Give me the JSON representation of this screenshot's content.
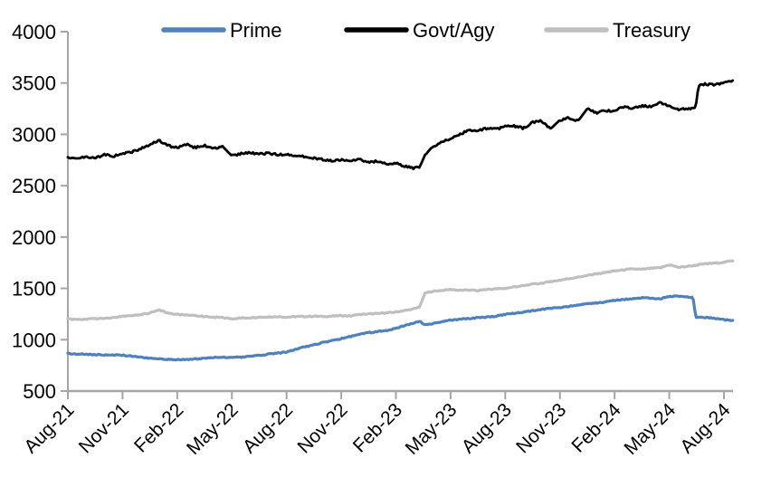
{
  "chart_data": {
    "type": "line",
    "title": "",
    "xlabel": "",
    "ylabel": "",
    "grid": false,
    "legend_position": "top",
    "axis_color": "#a6a6a6",
    "text_color": "#000000",
    "background": "#ffffff",
    "ylim": [
      500,
      4000
    ],
    "y_ticks": [
      4000,
      3500,
      3000,
      2500,
      2000,
      1500,
      1000,
      500
    ],
    "x_tick_labels": [
      "Aug-21",
      "Nov-21",
      "Feb-22",
      "May-22",
      "Aug-22",
      "Nov-22",
      "Feb-23",
      "May-23",
      "Aug-23",
      "Nov-23",
      "Feb-24",
      "May-24",
      "Aug-24"
    ],
    "x_tick_positions_months": [
      0,
      3,
      6,
      9,
      12,
      15,
      18,
      21,
      24,
      27,
      30,
      33,
      36
    ],
    "x_unit": "months since Aug-2021",
    "xlim": [
      0,
      36.5
    ],
    "x": [
      0,
      0.5,
      1,
      1.5,
      2,
      2.5,
      3,
      3.5,
      4,
      4.5,
      5,
      5.5,
      6,
      6.5,
      7,
      7.5,
      8,
      8.5,
      9,
      9.5,
      10,
      10.5,
      11,
      11.5,
      12,
      12.5,
      13,
      13.5,
      14,
      14.5,
      15,
      15.5,
      16,
      16.5,
      17,
      17.5,
      18,
      18.5,
      19,
      19.3,
      19.6,
      20,
      20.5,
      21,
      21.5,
      22,
      22.5,
      23,
      23.5,
      24,
      24.5,
      25,
      25.5,
      26,
      26.5,
      27,
      27.5,
      28,
      28.5,
      29,
      29.5,
      30,
      30.5,
      31,
      31.5,
      32,
      32.5,
      33,
      33.5,
      34,
      34.3,
      34.45,
      34.6,
      35,
      35.5,
      36,
      36.5
    ],
    "series": [
      {
        "name": "Prime",
        "color": "#4F81BD",
        "line_width": 3.2,
        "noise": 5,
        "values": [
          865,
          860,
          858,
          855,
          852,
          850,
          848,
          840,
          830,
          820,
          812,
          808,
          805,
          808,
          812,
          818,
          825,
          828,
          832,
          828,
          840,
          848,
          860,
          868,
          880,
          905,
          930,
          950,
          972,
          990,
          1010,
          1030,
          1052,
          1068,
          1080,
          1090,
          1110,
          1140,
          1165,
          1180,
          1145,
          1155,
          1175,
          1190,
          1200,
          1205,
          1215,
          1220,
          1230,
          1245,
          1258,
          1270,
          1282,
          1295,
          1305,
          1315,
          1325,
          1338,
          1348,
          1358,
          1368,
          1382,
          1392,
          1400,
          1410,
          1405,
          1398,
          1420,
          1425,
          1415,
          1415,
          1220,
          1218,
          1215,
          1210,
          1195,
          1185
        ]
      },
      {
        "name": "Govt/Agy",
        "color": "#000000",
        "line_width": 2.8,
        "noise": 10,
        "values": [
          2780,
          2765,
          2780,
          2770,
          2800,
          2790,
          2810,
          2830,
          2860,
          2900,
          2940,
          2890,
          2870,
          2905,
          2870,
          2890,
          2865,
          2880,
          2790,
          2810,
          2820,
          2810,
          2815,
          2805,
          2800,
          2795,
          2780,
          2770,
          2755,
          2745,
          2750,
          2735,
          2760,
          2725,
          2740,
          2705,
          2720,
          2690,
          2670,
          2680,
          2800,
          2880,
          2920,
          2960,
          3000,
          3040,
          3035,
          3060,
          3050,
          3075,
          3080,
          3060,
          3120,
          3130,
          3055,
          3140,
          3160,
          3130,
          3250,
          3210,
          3230,
          3225,
          3270,
          3250,
          3280,
          3270,
          3310,
          3270,
          3240,
          3250,
          3255,
          3265,
          3470,
          3490,
          3480,
          3500,
          3530
        ]
      },
      {
        "name": "Treasury",
        "color": "#BFBFBF",
        "line_width": 3.2,
        "noise": 5,
        "values": [
          1200,
          1195,
          1200,
          1205,
          1210,
          1215,
          1225,
          1235,
          1245,
          1260,
          1290,
          1260,
          1245,
          1240,
          1235,
          1225,
          1220,
          1215,
          1205,
          1210,
          1215,
          1220,
          1220,
          1225,
          1220,
          1225,
          1225,
          1230,
          1225,
          1230,
          1235,
          1230,
          1245,
          1250,
          1255,
          1260,
          1270,
          1285,
          1300,
          1320,
          1455,
          1470,
          1480,
          1490,
          1480,
          1485,
          1480,
          1490,
          1495,
          1500,
          1515,
          1525,
          1540,
          1550,
          1565,
          1580,
          1595,
          1610,
          1625,
          1640,
          1655,
          1670,
          1680,
          1690,
          1685,
          1695,
          1700,
          1730,
          1705,
          1715,
          1720,
          1725,
          1730,
          1740,
          1745,
          1755,
          1770
        ]
      }
    ]
  }
}
